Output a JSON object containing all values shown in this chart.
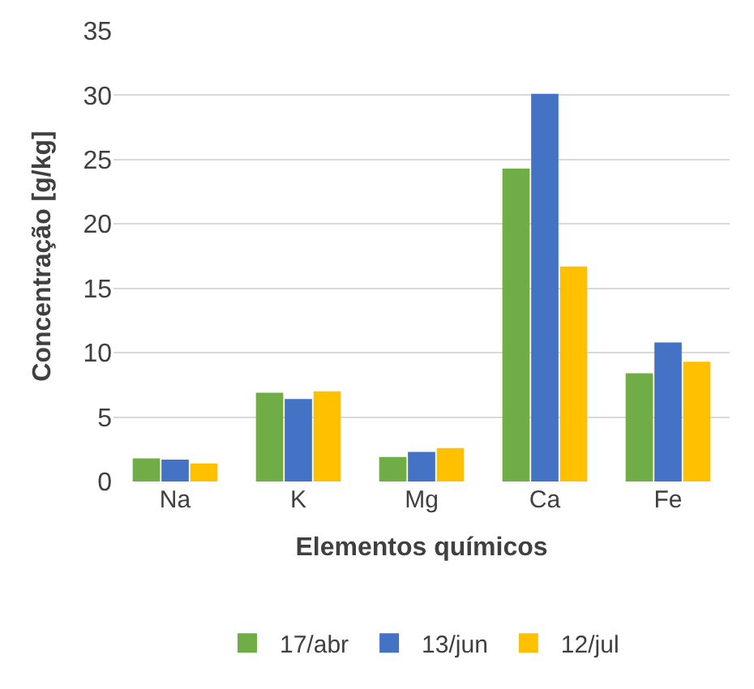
{
  "chart_data": {
    "type": "bar",
    "xlabel": "Elementos químicos",
    "ylabel": "Concentração [g/kg]",
    "categories": [
      "Na",
      "K",
      "Mg",
      "Ca",
      "Fe"
    ],
    "series": [
      {
        "name": "17/abr",
        "color": "#70ad47",
        "values": [
          1.8,
          6.9,
          1.9,
          24.3,
          8.4
        ]
      },
      {
        "name": "13/jun",
        "color": "#4472c4",
        "values": [
          1.7,
          6.4,
          2.3,
          30.1,
          10.8
        ]
      },
      {
        "name": "12/jul",
        "color": "#ffc000",
        "values": [
          1.4,
          7.0,
          2.6,
          16.7,
          9.3
        ]
      }
    ],
    "ylim": [
      0,
      35
    ],
    "yticks": [
      0,
      5,
      10,
      15,
      20,
      25,
      30,
      35
    ],
    "grid": "y",
    "legend": "bottom"
  }
}
